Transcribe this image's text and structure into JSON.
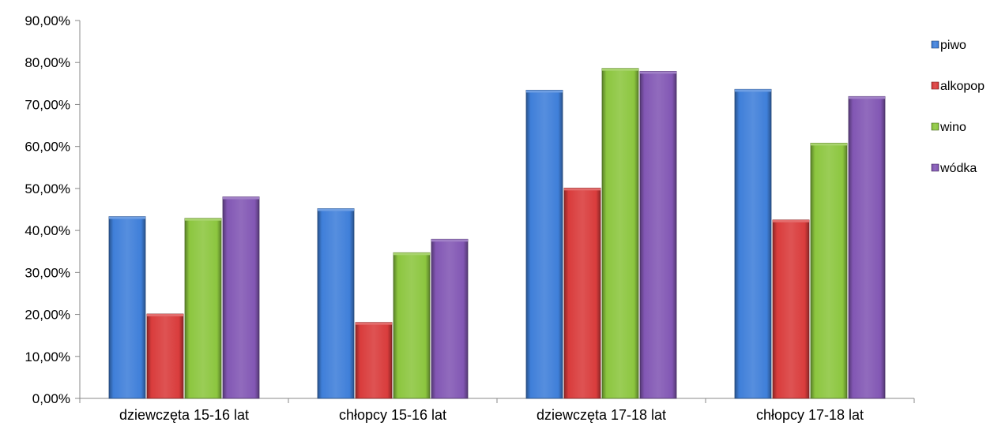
{
  "chart_data": {
    "type": "bar",
    "title": "",
    "xlabel": "",
    "ylabel": "",
    "categories": [
      "dziewczęta 15-16 lat",
      "chłopcy 15-16 lat",
      "dziewczęta 17-18 lat",
      "chłopcy 17-18 lat"
    ],
    "series": [
      {
        "name": "piwo",
        "color": "#3F7FD9",
        "values": [
          43.3,
          45.2,
          73.4,
          73.6
        ]
      },
      {
        "name": "alkopop",
        "color": "#D93C3C",
        "values": [
          20.1,
          18.1,
          50.1,
          42.5
        ]
      },
      {
        "name": "wino",
        "color": "#8CC63F",
        "values": [
          42.9,
          34.7,
          78.6,
          60.8
        ]
      },
      {
        "name": "wódka",
        "color": "#8257B4",
        "values": [
          48.0,
          37.9,
          77.9,
          71.9
        ]
      }
    ],
    "ylim": [
      0,
      90
    ],
    "yticks": [
      "0,00%",
      "10,00%",
      "20,00%",
      "30,00%",
      "40,00%",
      "50,00%",
      "60,00%",
      "70,00%",
      "80,00%",
      "90,00%"
    ],
    "grid": false,
    "legend_position": "right"
  }
}
